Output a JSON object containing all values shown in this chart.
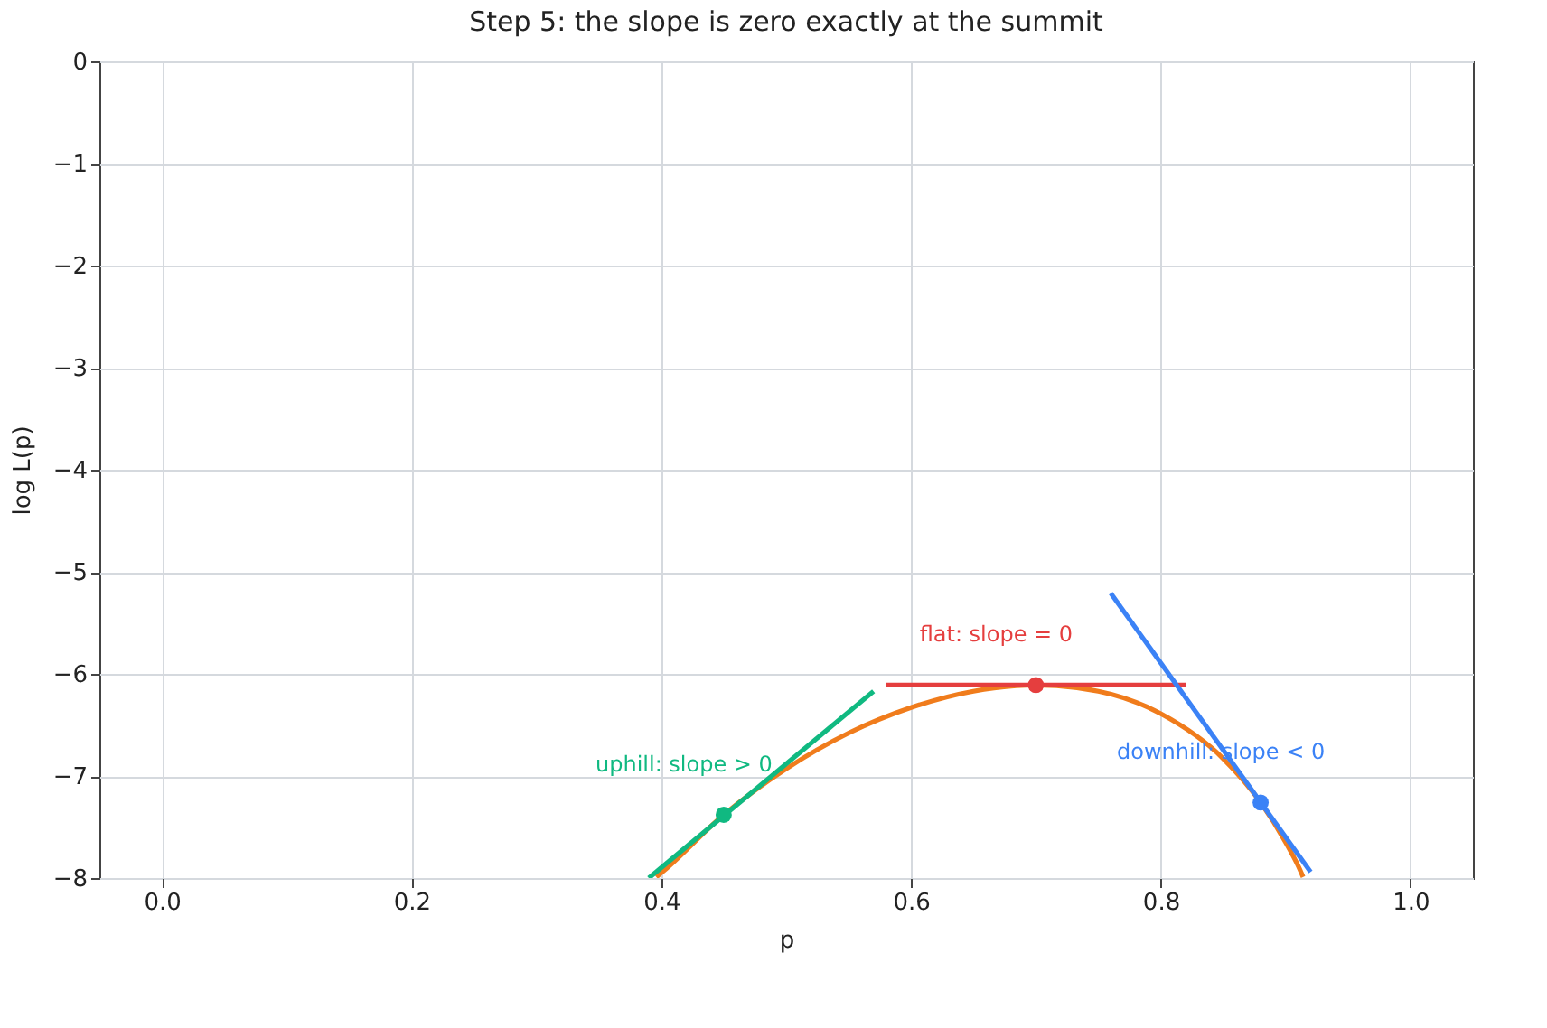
{
  "chart_data": {
    "type": "line",
    "title": "Step 5: the slope is zero exactly at the summit",
    "xlabel": "p",
    "ylabel": "log L(p)",
    "xlim": [
      -0.05,
      1.05
    ],
    "xticks": [
      {
        "value": 0,
        "label": "0.0"
      },
      0.2,
      0.4,
      0.6,
      0.8,
      {
        "value": 1,
        "label": "1.0"
      }
    ],
    "ylim": [
      -8,
      0
    ],
    "yticks": [
      -8,
      -7,
      -6,
      -5,
      -4,
      -3,
      -2,
      -1,
      0
    ],
    "grid": true,
    "series": [
      {
        "color": "#f07c1c",
        "x": [
          0.396,
          0.4,
          0.45,
          0.5,
          0.55,
          0.6,
          0.65,
          0.7,
          0.75,
          0.8,
          0.85,
          0.88,
          0.9,
          0.91,
          0.914
        ],
        "values": [
          -7.99,
          -7.95,
          -7.38,
          -6.93,
          -6.58,
          -6.33,
          -6.17,
          -6.11,
          -6.17,
          -6.39,
          -6.83,
          -7.26,
          -7.65,
          -7.88,
          -7.99
        ]
      },
      {
        "color": "#10b981",
        "x": [
          0.39,
          0.57
        ],
        "values": [
          -8.0,
          -6.17
        ]
      },
      {
        "color": "#e53e3e",
        "x": [
          0.58,
          0.82
        ],
        "values": [
          -6.11,
          -6.11
        ]
      },
      {
        "color": "#3b82f6",
        "x": [
          0.76,
          0.92
        ],
        "values": [
          -5.21,
          -7.94
        ]
      },
      {
        "type": "scatter",
        "marker": "circle",
        "color": "#10b981",
        "x": [
          0.45
        ],
        "values": [
          -7.38
        ]
      },
      {
        "type": "scatter",
        "marker": "circle",
        "color": "#e53e3e",
        "x": [
          0.7
        ],
        "values": [
          -6.11
        ]
      },
      {
        "type": "scatter",
        "marker": "circle",
        "color": "#3b82f6",
        "x": [
          0.88
        ],
        "values": [
          -7.26
        ]
      }
    ],
    "annotations": [
      "uphill: slope > 0",
      "flat: slope = 0",
      "downhill: slope < 0"
    ]
  }
}
